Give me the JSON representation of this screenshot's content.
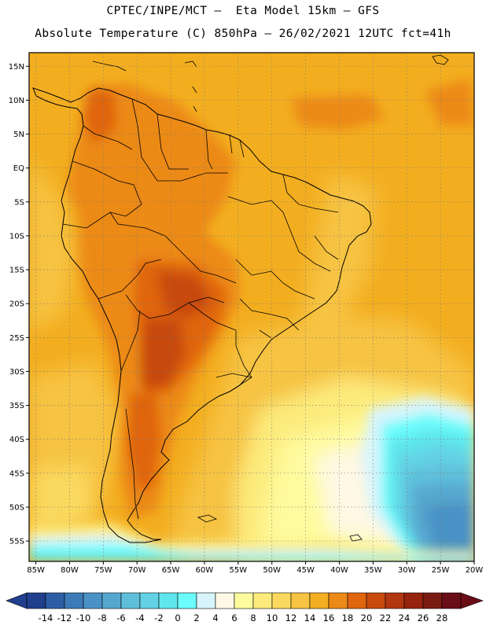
{
  "header": {
    "line1": "CPTEC/INPE/MCT –  Eta Model 15km – GFS",
    "line2": "Absolute Temperature (C) 850hPa – 26/02/2021 12UTC fct=41h"
  },
  "map": {
    "lon_range": [
      -86,
      -20
    ],
    "lat_range": [
      -58,
      17
    ],
    "lat_ticks": [
      {
        "value": 15,
        "label": "15N"
      },
      {
        "value": 10,
        "label": "10N"
      },
      {
        "value": 5,
        "label": "5N"
      },
      {
        "value": 0,
        "label": "EQ"
      },
      {
        "value": -5,
        "label": "5S"
      },
      {
        "value": -10,
        "label": "10S"
      },
      {
        "value": -15,
        "label": "15S"
      },
      {
        "value": -20,
        "label": "20S"
      },
      {
        "value": -25,
        "label": "25S"
      },
      {
        "value": -30,
        "label": "30S"
      },
      {
        "value": -35,
        "label": "35S"
      },
      {
        "value": -40,
        "label": "40S"
      },
      {
        "value": -45,
        "label": "45S"
      },
      {
        "value": -50,
        "label": "50S"
      },
      {
        "value": -55,
        "label": "55S"
      }
    ],
    "lon_ticks": [
      {
        "value": -85,
        "label": "85W"
      },
      {
        "value": -80,
        "label": "80W"
      },
      {
        "value": -75,
        "label": "75W"
      },
      {
        "value": -70,
        "label": "70W"
      },
      {
        "value": -65,
        "label": "65W"
      },
      {
        "value": -60,
        "label": "60W"
      },
      {
        "value": -55,
        "label": "55W"
      },
      {
        "value": -50,
        "label": "50W"
      },
      {
        "value": -45,
        "label": "45W"
      },
      {
        "value": -40,
        "label": "40W"
      },
      {
        "value": -35,
        "label": "35W"
      },
      {
        "value": -30,
        "label": "30W"
      },
      {
        "value": -25,
        "label": "25W"
      },
      {
        "value": -20,
        "label": "20W"
      }
    ],
    "gridlines": true,
    "field_variable": "temperature_850hPa_C",
    "warm_cores": [
      {
        "lon": -65,
        "lat": -17,
        "value": 22
      },
      {
        "lon": -66,
        "lat": -29,
        "value": 24
      },
      {
        "lon": -68,
        "lat": -42,
        "value": 22
      },
      {
        "lon": -73,
        "lat": 8,
        "value": 22
      }
    ],
    "cold_regions": [
      {
        "lon": -22,
        "lat": -50,
        "value": -6
      },
      {
        "lon": -60,
        "lat": -57,
        "value": 4
      }
    ]
  },
  "colorbar": {
    "colors": [
      "#203f8c",
      "#2d5ea5",
      "#3c7ab8",
      "#4a92c6",
      "#56a7cf",
      "#5fbfda",
      "#63d2e4",
      "#5fe6ec",
      "#6cfcfc",
      "#d8f4fb",
      "#fef8e4",
      "#fefb9e",
      "#fceb7c",
      "#fad95e",
      "#f6c343",
      "#f3ae20",
      "#ec8a18",
      "#e0650e",
      "#c84a0d",
      "#b2360f",
      "#95230d",
      "#7a1b12",
      "#6a0d17"
    ],
    "low_arrow_color": "#203f8c",
    "high_arrow_color": "#6a0d17",
    "labels": [
      "-14",
      "-12",
      "-10",
      "-8",
      "-6",
      "-4",
      "-2",
      "0",
      "2",
      "4",
      "6",
      "8",
      "10",
      "12",
      "14",
      "16",
      "18",
      "20",
      "22",
      "24",
      "26",
      "28"
    ]
  }
}
